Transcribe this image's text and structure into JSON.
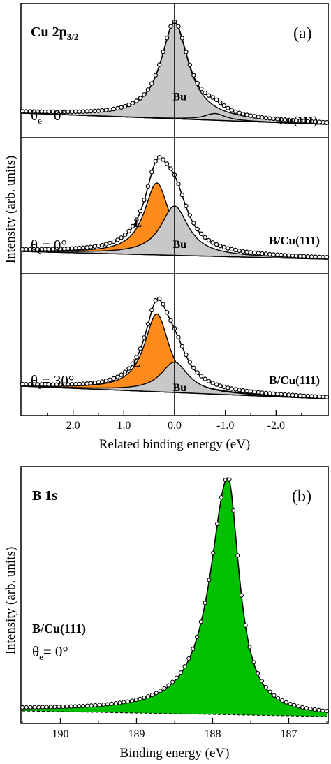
{
  "chart_data": [
    {
      "type": "line",
      "panel_label": "(a)",
      "core_level_main": "Cu 2p",
      "core_level_sub": "3/2",
      "xlabel": "Related binding energy (eV)",
      "ylabel": "Intensity (arb. units)",
      "x_reversed": true,
      "xlim": [
        3.0,
        -3.0
      ],
      "xticks": [
        2.0,
        1.0,
        0.0,
        -1.0,
        -2.0
      ],
      "xtick_labels": [
        "2.0",
        "1.0",
        "0.0",
        "-1.0",
        "-2.0"
      ],
      "reference_line_x": 0.0,
      "spectra": [
        {
          "sample": "Cu(111)",
          "angle_symbol": "θ",
          "angle_sub": "e",
          "angle_value": "= 0°",
          "components": [
            {
              "name": "Bu",
              "position": 0.0,
              "amplitude": 1.0,
              "width": 0.33,
              "fill": "#c8c8c8"
            },
            {
              "name": "",
              "position": -0.8,
              "amplitude": 0.07,
              "width": 0.25,
              "fill": "#c8c8c8"
            }
          ],
          "peak_labels": [
            {
              "text": "Bu",
              "x": -0.1,
              "level": 0.24
            }
          ]
        },
        {
          "sample": "B/Cu(111)",
          "angle_symbol": "θ",
          "angle_sub": "e",
          "angle_value": "= 0°",
          "components": [
            {
              "name": "L",
              "position": 0.35,
              "amplitude": 0.73,
              "width": 0.3,
              "fill": "#ff8c1a"
            },
            {
              "name": "Bu",
              "position": 0.0,
              "amplitude": 0.5,
              "width": 0.33,
              "fill": "#c8c8c8"
            }
          ],
          "peak_labels": [
            {
              "text": "L",
              "x": 0.72,
              "level": 0.32
            },
            {
              "text": "Bu",
              "x": -0.1,
              "level": 0.12
            }
          ]
        },
        {
          "sample": "B/Cu(111)",
          "angle_symbol": "θ",
          "angle_sub": "e",
          "angle_value": "= 30°",
          "components": [
            {
              "name": "L",
              "position": 0.35,
              "amplitude": 0.82,
              "width": 0.3,
              "fill": "#ff8c1a"
            },
            {
              "name": "Bu",
              "position": 0.0,
              "amplitude": 0.32,
              "width": 0.33,
              "fill": "#c8c8c8"
            }
          ],
          "peak_labels": [
            {
              "text": "L",
              "x": 0.75,
              "level": 0.3
            },
            {
              "text": "Bu",
              "x": -0.1,
              "level": 0.06
            }
          ]
        }
      ]
    },
    {
      "type": "line",
      "panel_label": "(b)",
      "core_level_main": "B 1s",
      "sample": "B/Cu(111)",
      "angle_symbol": "θ",
      "angle_sub": "e",
      "angle_value": "= 0°",
      "xlabel": "Binding energy (eV)",
      "ylabel": "Intensity (arb. units)",
      "x_reversed": true,
      "xlim": [
        190.5,
        186.5
      ],
      "xticks": [
        190,
        189,
        188,
        187
      ],
      "xtick_labels": [
        "190",
        "189",
        "188",
        "187"
      ],
      "peak": {
        "position": 187.8,
        "amplitude": 1.0,
        "width_low_be": 0.18,
        "width_high_be": 0.28,
        "fill": "#00c000"
      }
    }
  ]
}
